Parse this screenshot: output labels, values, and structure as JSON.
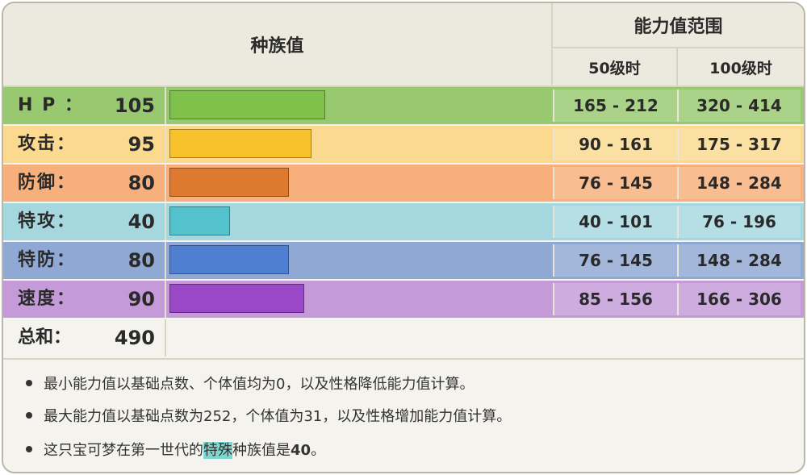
{
  "header": {
    "base_stats_title": "种族值",
    "range_title": "能力值范围",
    "level50": "50级时",
    "level100": "100级时"
  },
  "colors": {
    "hp_row": "#98c870",
    "hp_bar": "#7fc14b",
    "atk_row": "#fbd98f",
    "atk_bar": "#f8c22c",
    "def_row": "#f7b07b",
    "def_bar": "#de7a30",
    "spa_row": "#a5d8de",
    "spa_bar": "#54c2cd",
    "spd_row": "#8fa8d4",
    "spd_bar": "#4f7fd0",
    "spe_row": "#c59ad8",
    "spe_bar": "#9a47c8"
  },
  "stats": [
    {
      "label": "H P ：",
      "value": "105",
      "fraction": 0.41,
      "range50": "165 - 212",
      "range100": "320 - 414"
    },
    {
      "label": "攻击：",
      "value": "95",
      "fraction": 0.375,
      "range50": "90 - 161",
      "range100": "175 - 317"
    },
    {
      "label": "防御：",
      "value": "80",
      "fraction": 0.315,
      "range50": "76 - 145",
      "range100": "148 - 284"
    },
    {
      "label": "特攻：",
      "value": "40",
      "fraction": 0.16,
      "range50": "40 - 101",
      "range100": "76 - 196"
    },
    {
      "label": "特防：",
      "value": "80",
      "fraction": 0.315,
      "range50": "76 - 145",
      "range100": "148 - 284"
    },
    {
      "label": "速度：",
      "value": "90",
      "fraction": 0.355,
      "range50": "85 - 156",
      "range100": "166 - 306"
    }
  ],
  "total": {
    "label": "总和：",
    "value": "490"
  },
  "notes": {
    "n1": "最小能力值以基础点数、个体值均为0，以及性格降低能力值计算。",
    "n2": "最大能力值以基础点数为252，个体值为31，以及性格增加能力值计算。",
    "n3_pre": "这只宝可梦在第一世代的",
    "n3_hl": "特殊",
    "n3_mid": "种族值是",
    "n3_val": "40",
    "n3_end": "。"
  }
}
